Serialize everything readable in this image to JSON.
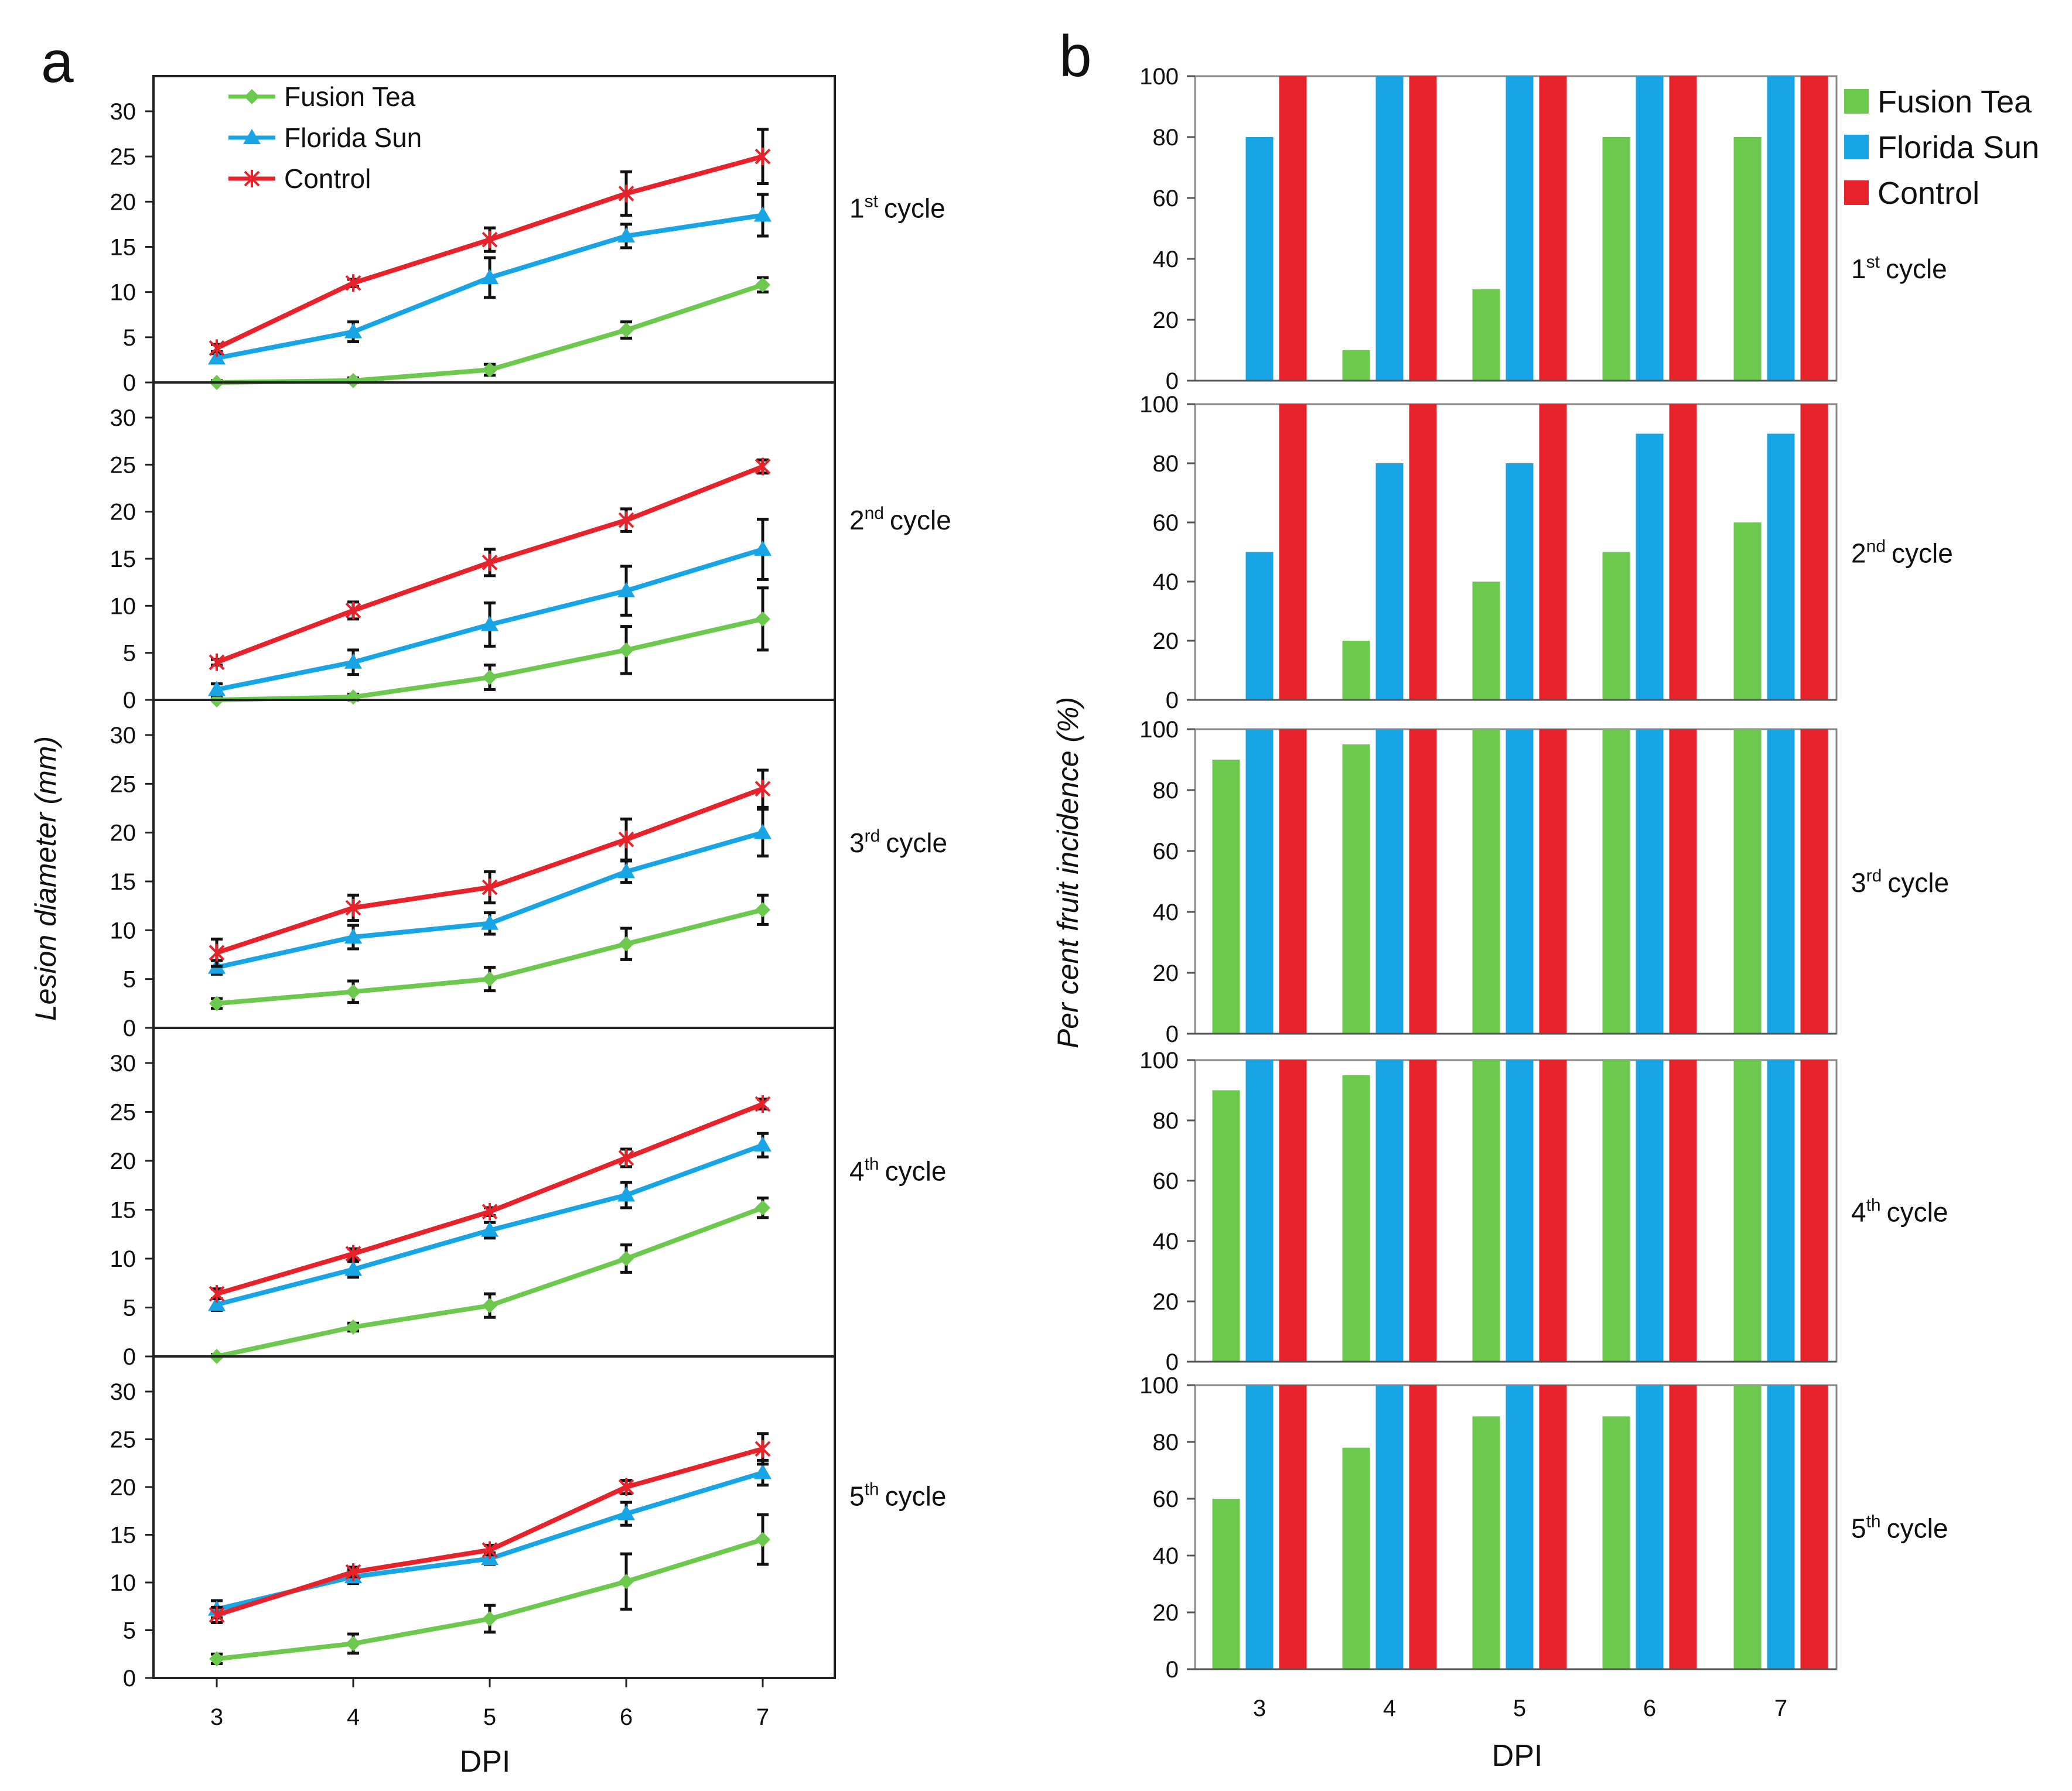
{
  "figure": {
    "panel_a_label": "a",
    "panel_b_label": "b"
  },
  "colors": {
    "fusion_tea": "#6cc94e",
    "florida_sun": "#17a5e6",
    "control": "#e8222a"
  },
  "chart_data": [
    {
      "type": "line",
      "panel": "a",
      "xlabel": "DPI",
      "ylabel": "Lesion diameter (mm)",
      "x": [
        3,
        4,
        5,
        6,
        7
      ],
      "ylim": [
        0,
        30
      ],
      "yticks": [
        0,
        5,
        10,
        15,
        20,
        25,
        30
      ],
      "legend": [
        "Fusion Tea",
        "Florida Sun",
        "Control"
      ],
      "subplots": [
        {
          "cycle_num": "1",
          "cycle_sup": "st",
          "cycle_word": "cycle",
          "series": [
            {
              "name": "Fusion Tea",
              "values": [
                0,
                0.2,
                1.4,
                5.8,
                10.8
              ],
              "errors": [
                0.2,
                0.3,
                0.6,
                0.9,
                0.8
              ]
            },
            {
              "name": "Florida Sun",
              "values": [
                2.7,
                5.6,
                11.6,
                16.2,
                18.5
              ],
              "errors": [
                0.5,
                1.1,
                2.2,
                1.3,
                2.3
              ]
            },
            {
              "name": "Control",
              "values": [
                3.8,
                11.0,
                15.8,
                20.9,
                25.0
              ],
              "errors": [
                0.4,
                0.4,
                1.3,
                2.4,
                3.0
              ]
            }
          ]
        },
        {
          "cycle_num": "2",
          "cycle_sup": "nd",
          "cycle_word": "cycle",
          "series": [
            {
              "name": "Fusion Tea",
              "values": [
                0,
                0.3,
                2.4,
                5.3,
                8.6
              ],
              "errors": [
                0.2,
                0.3,
                1.3,
                2.5,
                3.3
              ]
            },
            {
              "name": "Florida Sun",
              "values": [
                1.1,
                4.0,
                8.0,
                11.6,
                16.0
              ],
              "errors": [
                0.6,
                1.3,
                2.3,
                2.6,
                3.2
              ]
            },
            {
              "name": "Control",
              "values": [
                4.0,
                9.5,
                14.6,
                19.1,
                24.8
              ],
              "errors": [
                0.3,
                0.9,
                1.4,
                1.2,
                0.7
              ]
            }
          ]
        },
        {
          "cycle_num": "3",
          "cycle_sup": "rd",
          "cycle_word": "cycle",
          "series": [
            {
              "name": "Fusion Tea",
              "values": [
                2.5,
                3.7,
                5.0,
                8.6,
                12.1
              ],
              "errors": [
                0.5,
                1.1,
                1.2,
                1.6,
                1.5
              ]
            },
            {
              "name": "Florida Sun",
              "values": [
                6.2,
                9.3,
                10.7,
                16.0,
                20.0
              ],
              "errors": [
                0.7,
                1.2,
                1.1,
                1.1,
                2.4
              ]
            },
            {
              "name": "Control",
              "values": [
                7.7,
                12.3,
                14.4,
                19.3,
                24.5
              ],
              "errors": [
                1.4,
                1.3,
                1.6,
                2.1,
                1.9
              ]
            }
          ]
        },
        {
          "cycle_num": "4",
          "cycle_sup": "th",
          "cycle_word": "cycle",
          "series": [
            {
              "name": "Fusion Tea",
              "values": [
                0,
                3.0,
                5.2,
                10.0,
                15.2
              ],
              "errors": [
                0.2,
                0.4,
                1.2,
                1.4,
                1.0
              ]
            },
            {
              "name": "Florida Sun",
              "values": [
                5.3,
                8.9,
                12.9,
                16.5,
                21.6
              ],
              "errors": [
                0.6,
                0.8,
                0.8,
                1.3,
                1.2
              ]
            },
            {
              "name": "Control",
              "values": [
                6.4,
                10.5,
                14.8,
                20.3,
                25.8
              ],
              "errors": [
                0.5,
                0.5,
                0.4,
                0.9,
                0.5
              ]
            }
          ]
        },
        {
          "cycle_num": "5",
          "cycle_sup": "th",
          "cycle_word": "cycle",
          "series": [
            {
              "name": "Fusion Tea",
              "values": [
                2.0,
                3.6,
                6.2,
                10.1,
                14.5
              ],
              "errors": [
                0.5,
                1.0,
                1.4,
                2.9,
                2.6
              ]
            },
            {
              "name": "Florida Sun",
              "values": [
                7.2,
                10.6,
                12.5,
                17.2,
                21.5
              ],
              "errors": [
                0.9,
                0.7,
                0.6,
                1.2,
                1.3
              ]
            },
            {
              "name": "Control",
              "values": [
                6.6,
                11.1,
                13.4,
                20.0,
                24.0
              ],
              "errors": [
                0.8,
                0.5,
                0.5,
                0.7,
                1.6
              ]
            }
          ]
        }
      ]
    },
    {
      "type": "bar",
      "panel": "b",
      "xlabel": "DPI",
      "ylabel": "Per cent fruit incidence (%)",
      "categories": [
        "3",
        "4",
        "5",
        "6",
        "7"
      ],
      "ylim": [
        0,
        100
      ],
      "yticks": [
        0,
        20,
        40,
        60,
        80,
        100
      ],
      "legend": [
        "Fusion Tea",
        "Florida Sun",
        "Control"
      ],
      "subplots": [
        {
          "cycle_num": "1",
          "cycle_sup": "st",
          "cycle_word": "cycle",
          "series": [
            {
              "name": "Fusion Tea",
              "values": [
                0,
                10,
                30,
                80,
                80
              ]
            },
            {
              "name": "Florida Sun",
              "values": [
                80,
                100,
                100,
                100,
                100
              ]
            },
            {
              "name": "Control",
              "values": [
                100,
                100,
                100,
                100,
                100
              ]
            }
          ]
        },
        {
          "cycle_num": "2",
          "cycle_sup": "nd",
          "cycle_word": "cycle",
          "series": [
            {
              "name": "Fusion Tea",
              "values": [
                0,
                20,
                40,
                50,
                60
              ]
            },
            {
              "name": "Florida Sun",
              "values": [
                50,
                80,
                80,
                90,
                90
              ]
            },
            {
              "name": "Control",
              "values": [
                100,
                100,
                100,
                100,
                100
              ]
            }
          ]
        },
        {
          "cycle_num": "3",
          "cycle_sup": "rd",
          "cycle_word": "cycle",
          "series": [
            {
              "name": "Fusion Tea",
              "values": [
                90,
                95,
                100,
                100,
                100
              ]
            },
            {
              "name": "Florida Sun",
              "values": [
                100,
                100,
                100,
                100,
                100
              ]
            },
            {
              "name": "Control",
              "values": [
                100,
                100,
                100,
                100,
                100
              ]
            }
          ]
        },
        {
          "cycle_num": "4",
          "cycle_sup": "th",
          "cycle_word": "cycle",
          "series": [
            {
              "name": "Fusion Tea",
              "values": [
                90,
                95,
                100,
                100,
                100
              ]
            },
            {
              "name": "Florida Sun",
              "values": [
                100,
                100,
                100,
                100,
                100
              ]
            },
            {
              "name": "Control",
              "values": [
                100,
                100,
                100,
                100,
                100
              ]
            }
          ]
        },
        {
          "cycle_num": "5",
          "cycle_sup": "th",
          "cycle_word": "cycle",
          "series": [
            {
              "name": "Fusion Tea",
              "values": [
                60,
                78,
                89,
                89,
                100
              ]
            },
            {
              "name": "Florida Sun",
              "values": [
                100,
                100,
                100,
                100,
                100
              ]
            },
            {
              "name": "Control",
              "values": [
                100,
                100,
                100,
                100,
                100
              ]
            }
          ]
        }
      ]
    }
  ]
}
